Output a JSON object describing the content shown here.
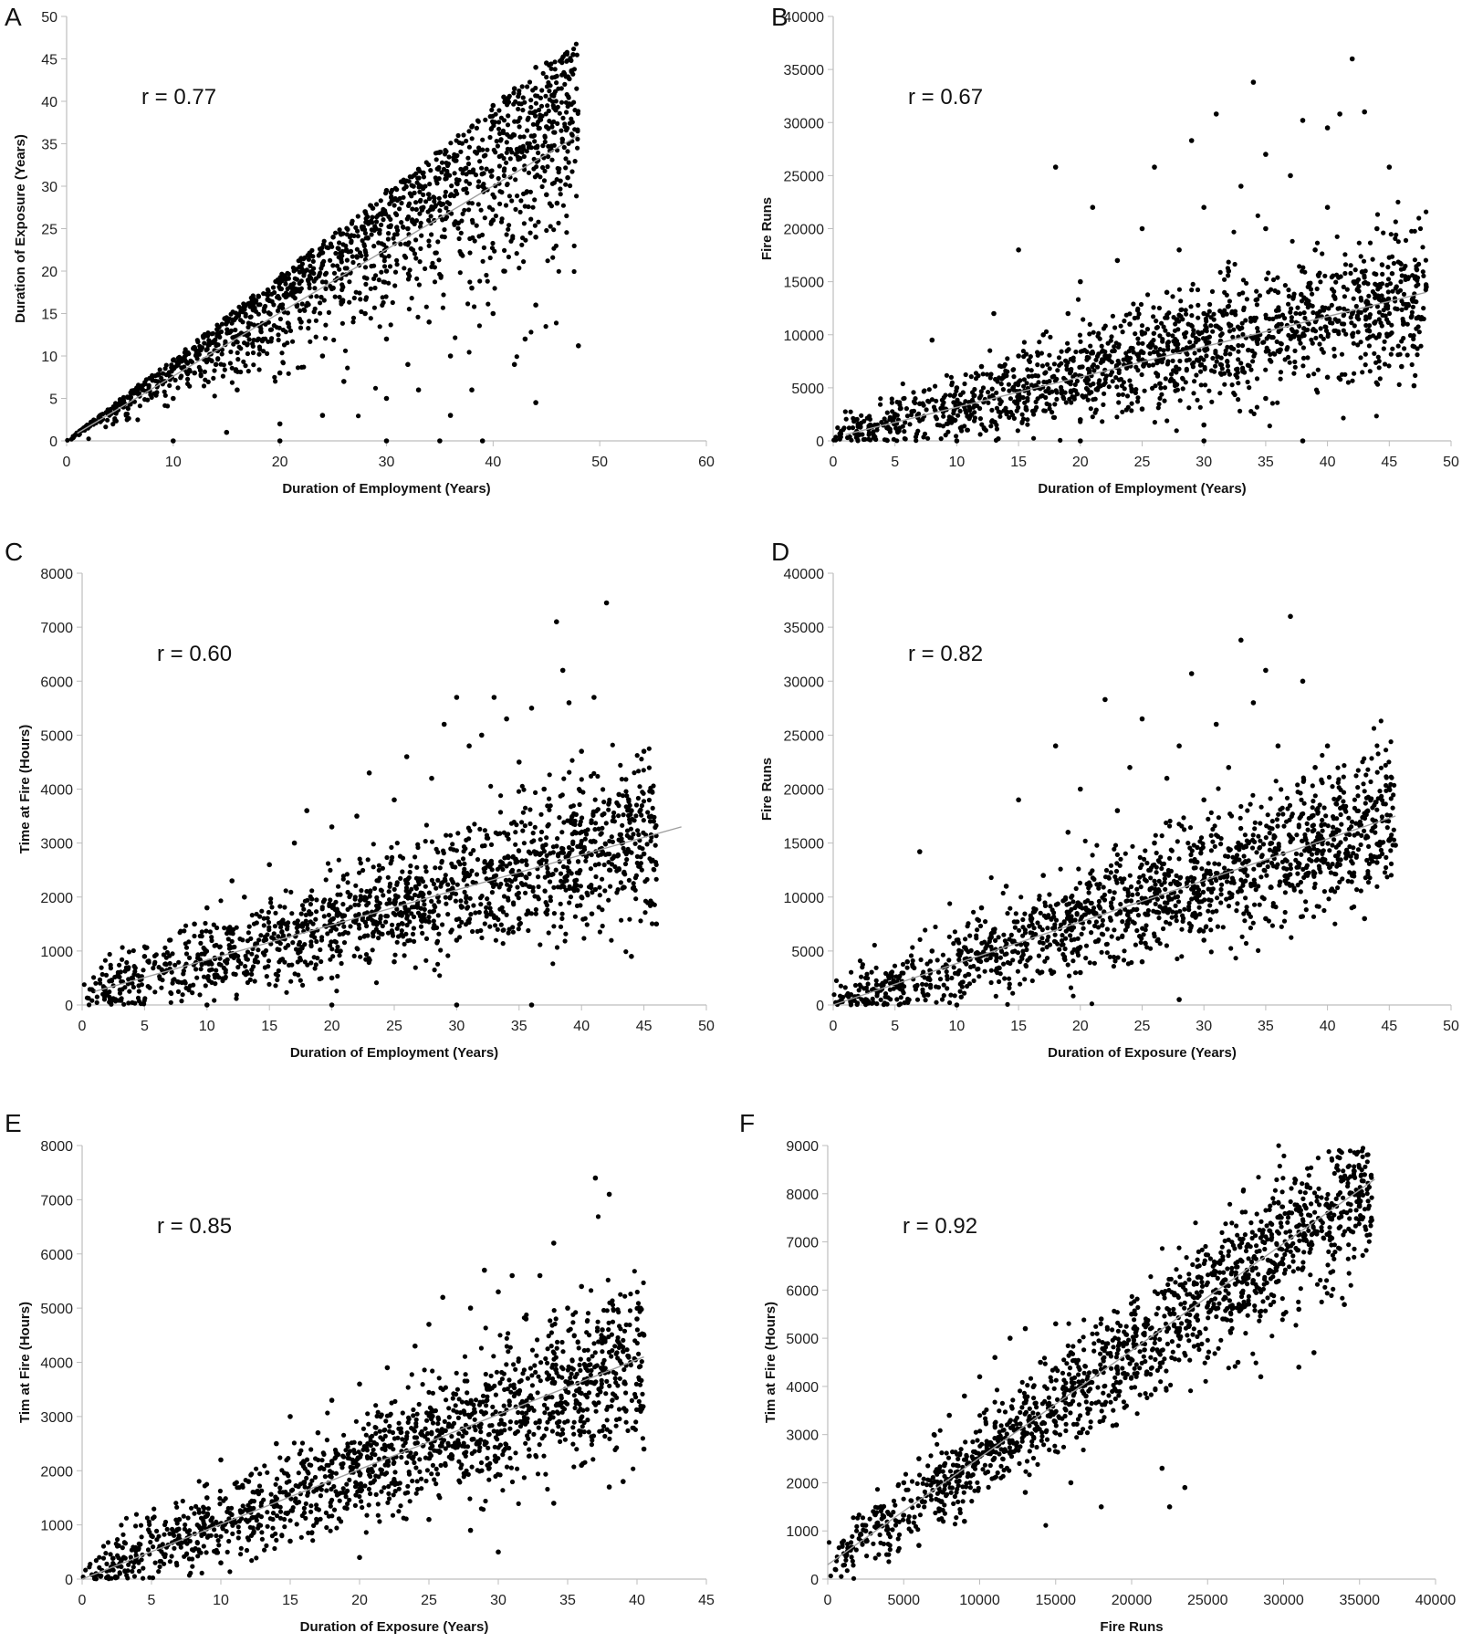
{
  "chart_data": [
    {
      "panel": "A",
      "type": "scatter",
      "annotation": "r = 0.77",
      "xlabel": "Duration of Employment (Years)",
      "ylabel": "Duration of Exposure (Years)",
      "xlim": [
        0,
        60
      ],
      "ylim": [
        0,
        50
      ],
      "xticks": [
        0,
        10,
        20,
        30,
        40,
        50,
        60
      ],
      "yticks": [
        0,
        5,
        10,
        15,
        20,
        25,
        30,
        35,
        40,
        45,
        50
      ],
      "trendline": [
        [
          1,
          0.9
        ],
        [
          48,
          36
        ]
      ],
      "points": [
        [
          5,
          4.5
        ],
        [
          8,
          7.5
        ],
        [
          10,
          9.5
        ],
        [
          12,
          11
        ],
        [
          15,
          14.5
        ],
        [
          18,
          17
        ],
        [
          20,
          19
        ],
        [
          22,
          21.5
        ],
        [
          25,
          24
        ],
        [
          28,
          27
        ],
        [
          30,
          29.5
        ],
        [
          33,
          32
        ],
        [
          35,
          34
        ],
        [
          38,
          37
        ],
        [
          40,
          39.5
        ],
        [
          41,
          40.5
        ],
        [
          42,
          41.5
        ],
        [
          44,
          44
        ],
        [
          45,
          44.5
        ],
        [
          47.5,
          45.5
        ],
        [
          10,
          5
        ],
        [
          12,
          8
        ],
        [
          14,
          9
        ],
        [
          16,
          6
        ],
        [
          18,
          12
        ],
        [
          20,
          8
        ],
        [
          22,
          14
        ],
        [
          24,
          10
        ],
        [
          25,
          18
        ],
        [
          26,
          7
        ],
        [
          28,
          15
        ],
        [
          30,
          12
        ],
        [
          30,
          20
        ],
        [
          32,
          9
        ],
        [
          32,
          25
        ],
        [
          34,
          14
        ],
        [
          35,
          28
        ],
        [
          36,
          10
        ],
        [
          37,
          22
        ],
        [
          38,
          18
        ],
        [
          39,
          30
        ],
        [
          40,
          15
        ],
        [
          40,
          26
        ],
        [
          41,
          20
        ],
        [
          42,
          32
        ],
        [
          43,
          12
        ],
        [
          44,
          24
        ],
        [
          44,
          16
        ],
        [
          45,
          29
        ],
        [
          45,
          37
        ],
        [
          46,
          28
        ],
        [
          47,
          31
        ],
        [
          48,
          11.2
        ],
        [
          42,
          9
        ],
        [
          44,
          4.5
        ],
        [
          38,
          6
        ],
        [
          36,
          3
        ],
        [
          24,
          3
        ],
        [
          20,
          2
        ],
        [
          15,
          1
        ],
        [
          30,
          5
        ],
        [
          33,
          6
        ],
        [
          10,
          0
        ],
        [
          20,
          0
        ],
        [
          30,
          0
        ],
        [
          35,
          0
        ],
        [
          39,
          0
        ]
      ]
    },
    {
      "panel": "B",
      "type": "scatter",
      "annotation": "r = 0.67",
      "xlabel": "Duration of Employment (Years)",
      "ylabel": "Fire Runs",
      "xlim": [
        0,
        50
      ],
      "ylim": [
        0,
        40000
      ],
      "xticks": [
        0,
        5,
        10,
        15,
        20,
        25,
        30,
        35,
        40,
        45,
        50
      ],
      "yticks": [
        0,
        5000,
        10000,
        15000,
        20000,
        25000,
        30000,
        35000,
        40000
      ],
      "trendline": [
        [
          1,
          600
        ],
        [
          48,
          14000
        ]
      ],
      "points": [
        [
          2,
          500
        ],
        [
          3,
          1500
        ],
        [
          5,
          2500
        ],
        [
          7,
          3500
        ],
        [
          8,
          9500
        ],
        [
          10,
          5000
        ],
        [
          12,
          7000
        ],
        [
          13,
          12000
        ],
        [
          15,
          8000
        ],
        [
          15,
          18000
        ],
        [
          17,
          10000
        ],
        [
          18,
          25800
        ],
        [
          19,
          12000
        ],
        [
          20,
          15000
        ],
        [
          21,
          22000
        ],
        [
          22,
          8000
        ],
        [
          23,
          17000
        ],
        [
          24,
          11000
        ],
        [
          25,
          20000
        ],
        [
          26,
          25800
        ],
        [
          27,
          14000
        ],
        [
          28,
          18000
        ],
        [
          29,
          28300
        ],
        [
          30,
          12000
        ],
        [
          30,
          22000
        ],
        [
          31,
          30800
        ],
        [
          32,
          16000
        ],
        [
          33,
          24000
        ],
        [
          34,
          33800
        ],
        [
          35,
          27000
        ],
        [
          35,
          20000
        ],
        [
          36,
          14000
        ],
        [
          37,
          25000
        ],
        [
          38,
          30200
        ],
        [
          39,
          18000
        ],
        [
          40,
          29500
        ],
        [
          40,
          22000
        ],
        [
          41,
          30800
        ],
        [
          42,
          36000
        ],
        [
          42,
          12000
        ],
        [
          43,
          31000
        ],
        [
          44,
          20000
        ],
        [
          45,
          25800
        ],
        [
          45,
          10000
        ],
        [
          46,
          7000
        ],
        [
          47,
          5200
        ],
        [
          48,
          14500
        ],
        [
          20,
          2000
        ],
        [
          25,
          3000
        ],
        [
          30,
          1500
        ],
        [
          35,
          4000
        ],
        [
          40,
          6000
        ],
        [
          10,
          0
        ],
        [
          20,
          0
        ],
        [
          30,
          0
        ],
        [
          38,
          0
        ]
      ]
    },
    {
      "panel": "C",
      "type": "scatter",
      "annotation": "r = 0.60",
      "xlabel": "Duration of Employment (Years)",
      "ylabel": "Time at Fire (Hours)",
      "xlim": [
        0,
        50
      ],
      "ylim": [
        0,
        8000
      ],
      "xticks": [
        0,
        5,
        10,
        15,
        20,
        25,
        30,
        35,
        40,
        45,
        50
      ],
      "yticks": [
        0,
        1000,
        2000,
        3000,
        4000,
        5000,
        6000,
        7000,
        8000
      ],
      "trendline": [
        [
          1,
          250
        ],
        [
          48,
          3300
        ]
      ],
      "points": [
        [
          2,
          200
        ],
        [
          4,
          500
        ],
        [
          5,
          900
        ],
        [
          7,
          1200
        ],
        [
          9,
          1500
        ],
        [
          10,
          1800
        ],
        [
          12,
          2300
        ],
        [
          13,
          2000
        ],
        [
          15,
          2600
        ],
        [
          17,
          3000
        ],
        [
          18,
          3600
        ],
        [
          20,
          3300
        ],
        [
          22,
          3500
        ],
        [
          23,
          4300
        ],
        [
          25,
          3800
        ],
        [
          26,
          4600
        ],
        [
          28,
          4200
        ],
        [
          29,
          5200
        ],
        [
          30,
          5700
        ],
        [
          31,
          4800
        ],
        [
          32,
          5000
        ],
        [
          33,
          5700
        ],
        [
          34,
          5300
        ],
        [
          35,
          4500
        ],
        [
          36,
          5500
        ],
        [
          37,
          4000
        ],
        [
          38,
          7100
        ],
        [
          38.5,
          6200
        ],
        [
          39,
          5600
        ],
        [
          40,
          4700
        ],
        [
          41,
          5700
        ],
        [
          42,
          7450
        ],
        [
          43,
          3900
        ],
        [
          44,
          3600
        ],
        [
          45,
          4700
        ],
        [
          45,
          2800
        ],
        [
          46,
          1500
        ],
        [
          20,
          500
        ],
        [
          25,
          800
        ],
        [
          30,
          1200
        ],
        [
          35,
          1600
        ],
        [
          40,
          2000
        ],
        [
          44,
          900
        ],
        [
          10,
          0
        ],
        [
          20,
          0
        ],
        [
          30,
          0
        ],
        [
          36,
          0
        ]
      ]
    },
    {
      "panel": "D",
      "type": "scatter",
      "annotation": "r = 0.82",
      "xlabel": "Duration of Exposure (Years)",
      "ylabel": "Fire Runs",
      "xlim": [
        0,
        50
      ],
      "ylim": [
        0,
        40000
      ],
      "xticks": [
        0,
        5,
        10,
        15,
        20,
        25,
        30,
        35,
        40,
        45,
        50
      ],
      "yticks": [
        0,
        5000,
        10000,
        15000,
        20000,
        25000,
        30000,
        35000,
        40000
      ],
      "trendline": [
        [
          0,
          0
        ],
        [
          45.5,
          17500
        ]
      ],
      "points": [
        [
          2,
          800
        ],
        [
          4,
          2000
        ],
        [
          6,
          4000
        ],
        [
          7,
          14200
        ],
        [
          8,
          5000
        ],
        [
          10,
          6000
        ],
        [
          12,
          9000
        ],
        [
          14,
          11000
        ],
        [
          15,
          19000
        ],
        [
          17,
          12000
        ],
        [
          18,
          24000
        ],
        [
          19,
          16000
        ],
        [
          20,
          20000
        ],
        [
          22,
          28300
        ],
        [
          23,
          18000
        ],
        [
          24,
          22000
        ],
        [
          25,
          26500
        ],
        [
          26,
          15000
        ],
        [
          27,
          21000
        ],
        [
          28,
          24000
        ],
        [
          29,
          30700
        ],
        [
          30,
          19000
        ],
        [
          31,
          26000
        ],
        [
          32,
          22000
        ],
        [
          33,
          33800
        ],
        [
          34,
          28000
        ],
        [
          35,
          31000
        ],
        [
          36,
          24000
        ],
        [
          37,
          36000
        ],
        [
          38,
          30000
        ],
        [
          39,
          22000
        ],
        [
          40,
          24000
        ],
        [
          41,
          13000
        ],
        [
          42,
          12000
        ],
        [
          43,
          8000
        ],
        [
          44,
          13200
        ],
        [
          45.5,
          14800
        ],
        [
          20,
          3000
        ],
        [
          25,
          4000
        ],
        [
          30,
          6000
        ],
        [
          35,
          8000
        ],
        [
          28,
          500
        ],
        [
          10,
          0
        ]
      ]
    },
    {
      "panel": "E",
      "type": "scatter",
      "annotation": "r = 0.85",
      "xlabel": "Duration of Exposure (Years)",
      "ylabel": "Tim at Fire (Hours)",
      "xlim": [
        0,
        45
      ],
      "ylim": [
        0,
        8000
      ],
      "xticks": [
        0,
        5,
        10,
        15,
        20,
        25,
        30,
        35,
        40,
        45
      ],
      "yticks": [
        0,
        1000,
        2000,
        3000,
        4000,
        5000,
        6000,
        7000,
        8000
      ],
      "trendline": [
        [
          0,
          0
        ],
        [
          40.5,
          4100
        ]
      ],
      "points": [
        [
          1,
          100
        ],
        [
          3,
          400
        ],
        [
          5,
          800
        ],
        [
          7,
          1100
        ],
        [
          9,
          1500
        ],
        [
          10,
          2200
        ],
        [
          12,
          1800
        ],
        [
          14,
          2500
        ],
        [
          15,
          3000
        ],
        [
          17,
          2700
        ],
        [
          18,
          3300
        ],
        [
          20,
          3600
        ],
        [
          22,
          3900
        ],
        [
          24,
          4300
        ],
        [
          25,
          4700
        ],
        [
          26,
          5200
        ],
        [
          28,
          5000
        ],
        [
          29,
          5700
        ],
        [
          30,
          5300
        ],
        [
          31,
          5600
        ],
        [
          32,
          4800
        ],
        [
          33,
          5600
        ],
        [
          34,
          6200
        ],
        [
          35,
          5000
        ],
        [
          36,
          5400
        ],
        [
          37,
          7400
        ],
        [
          37.5,
          4600
        ],
        [
          38,
          7100
        ],
        [
          39,
          4200
        ],
        [
          40,
          4800
        ],
        [
          40.5,
          4500
        ],
        [
          40.5,
          2400
        ],
        [
          39,
          1800
        ],
        [
          38,
          1700
        ],
        [
          36,
          2100
        ],
        [
          34,
          1400
        ],
        [
          30,
          500
        ],
        [
          28,
          900
        ],
        [
          25,
          1100
        ],
        [
          20,
          400
        ],
        [
          15,
          700
        ],
        [
          10,
          300
        ]
      ]
    },
    {
      "panel": "F",
      "type": "scatter",
      "annotation": "r = 0.92",
      "xlabel": "Fire Runs",
      "ylabel": "Tim at Fire (Hours)",
      "xlim": [
        0,
        40000
      ],
      "ylim": [
        0,
        9000
      ],
      "xticks": [
        0,
        5000,
        10000,
        15000,
        20000,
        25000,
        30000,
        35000,
        40000
      ],
      "yticks": [
        0,
        1000,
        2000,
        3000,
        4000,
        5000,
        6000,
        7000,
        8000,
        9000
      ],
      "trendline": [
        [
          0,
          300
        ],
        [
          36000,
          8300
        ]
      ],
      "points": [
        [
          500,
          200
        ],
        [
          1500,
          600
        ],
        [
          2500,
          1000
        ],
        [
          3500,
          1500
        ],
        [
          5000,
          2000
        ],
        [
          6000,
          2500
        ],
        [
          7000,
          3000
        ],
        [
          8000,
          3400
        ],
        [
          9000,
          3800
        ],
        [
          10000,
          4200
        ],
        [
          11000,
          4600
        ],
        [
          12000,
          5000
        ],
        [
          13000,
          5200
        ],
        [
          14000,
          4500
        ],
        [
          15000,
          5300
        ],
        [
          16000,
          4700
        ],
        [
          17000,
          3800
        ],
        [
          18000,
          5400
        ],
        [
          19000,
          3200
        ],
        [
          20000,
          5500
        ],
        [
          21000,
          4300
        ],
        [
          22000,
          2300
        ],
        [
          23000,
          5200
        ],
        [
          24000,
          5600
        ],
        [
          25000,
          4600
        ],
        [
          26000,
          5400
        ],
        [
          27000,
          4500
        ],
        [
          28000,
          6200
        ],
        [
          28500,
          4200
        ],
        [
          30000,
          5500
        ],
        [
          30500,
          7100
        ],
        [
          31000,
          5600
        ],
        [
          31000,
          4400
        ],
        [
          32000,
          4700
        ],
        [
          34000,
          5700
        ],
        [
          35800,
          7450
        ],
        [
          23500,
          1900
        ],
        [
          22500,
          1500
        ],
        [
          18000,
          1500
        ],
        [
          16000,
          2000
        ],
        [
          13000,
          1800
        ],
        [
          9000,
          1200
        ],
        [
          6000,
          700
        ]
      ]
    }
  ]
}
